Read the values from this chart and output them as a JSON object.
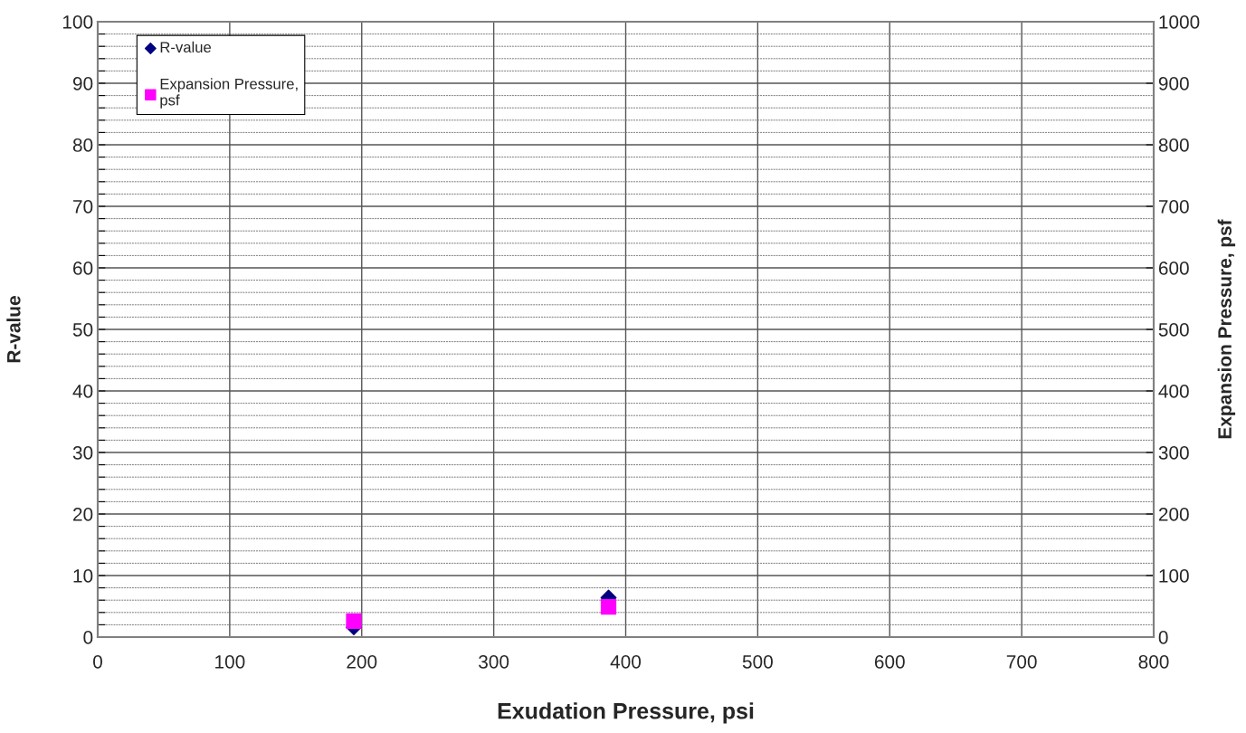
{
  "chart_data": {
    "type": "scatter",
    "xlabel": "Exudation Pressure, psi",
    "ylabel": "R-value",
    "y2label": "Expansion Pressure, psf",
    "x": [
      194,
      387
    ],
    "series": [
      {
        "name": "R-value",
        "color": "#000080",
        "marker": "diamond",
        "values": [
          1.6,
          6.4
        ]
      },
      {
        "name": "Expansion Pressure,\npsf",
        "color": "#ff00ff",
        "marker": "square",
        "axis": "y2",
        "values": [
          26,
          49
        ]
      }
    ],
    "xlim": [
      0,
      800
    ],
    "xticks": [
      0,
      100,
      200,
      300,
      400,
      500,
      600,
      700,
      800
    ],
    "ylim": [
      0,
      100
    ],
    "yticks": [
      0,
      {
        "value": 2,
        "label": null
      },
      {
        "value": 4,
        "label": null
      },
      {
        "value": 6,
        "label": null
      },
      {
        "value": 8,
        "label": null
      },
      10,
      {
        "value": 12,
        "label": null
      },
      {
        "value": 14,
        "label": null
      },
      {
        "value": 16,
        "label": null
      },
      {
        "value": 18,
        "label": null
      },
      20,
      {
        "value": 22,
        "label": null
      },
      {
        "value": 24,
        "label": null
      },
      {
        "value": 26,
        "label": null
      },
      {
        "value": 28,
        "label": null
      },
      30,
      {
        "value": 32,
        "label": null
      },
      {
        "value": 34,
        "label": null
      },
      {
        "value": 36,
        "label": null
      },
      {
        "value": 38,
        "label": null
      },
      40,
      {
        "value": 42,
        "label": null
      },
      {
        "value": 44,
        "label": null
      },
      {
        "value": 46,
        "label": null
      },
      {
        "value": 48,
        "label": null
      },
      50,
      {
        "value": 52,
        "label": null
      },
      {
        "value": 54,
        "label": null
      },
      {
        "value": 56,
        "label": null
      },
      {
        "value": 58,
        "label": null
      },
      60,
      {
        "value": 62,
        "label": null
      },
      {
        "value": 64,
        "label": null
      },
      {
        "value": 66,
        "label": null
      },
      {
        "value": 68,
        "label": null
      },
      70,
      {
        "value": 72,
        "label": null
      },
      {
        "value": 74,
        "label": null
      },
      {
        "value": 76,
        "label": null
      },
      {
        "value": 78,
        "label": null
      },
      80,
      {
        "value": 82,
        "label": null
      },
      {
        "value": 84,
        "label": null
      },
      {
        "value": 86,
        "label": null
      },
      {
        "value": 88,
        "label": null
      },
      90,
      {
        "value": 92,
        "label": null
      },
      {
        "value": 94,
        "label": null
      },
      {
        "value": 96,
        "label": null
      },
      {
        "value": 98,
        "label": null
      },
      100
    ],
    "y2lim": [
      0,
      1000
    ],
    "y2ticks": [
      0,
      100,
      200,
      300,
      400,
      500,
      600,
      700,
      800,
      900,
      1000
    ],
    "grid": true,
    "legend": "top left"
  }
}
